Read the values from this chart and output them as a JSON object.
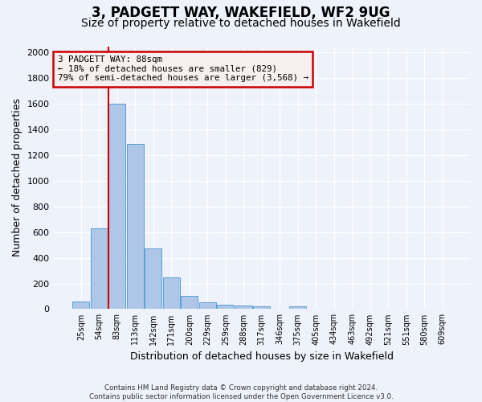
{
  "title1": "3, PADGETT WAY, WAKEFIELD, WF2 9UG",
  "title2": "Size of property relative to detached houses in Wakefield",
  "xlabel": "Distribution of detached houses by size in Wakefield",
  "ylabel": "Number of detached properties",
  "categories": [
    "25sqm",
    "54sqm",
    "83sqm",
    "113sqm",
    "142sqm",
    "171sqm",
    "200sqm",
    "229sqm",
    "259sqm",
    "288sqm",
    "317sqm",
    "346sqm",
    "375sqm",
    "405sqm",
    "434sqm",
    "463sqm",
    "492sqm",
    "521sqm",
    "551sqm",
    "580sqm",
    "609sqm"
  ],
  "values": [
    60,
    630,
    1600,
    1290,
    475,
    248,
    103,
    52,
    37,
    28,
    20,
    0,
    20,
    0,
    0,
    0,
    0,
    0,
    0,
    0,
    0
  ],
  "bar_color": "#aec6e8",
  "bar_edge_color": "#5a9fd4",
  "vline_x_index": 2,
  "vline_color": "#cc0000",
  "annotation_text": "3 PADGETT WAY: 88sqm\n← 18% of detached houses are smaller (829)\n79% of semi-detached houses are larger (3,568) →",
  "annotation_box_facecolor": "#f8f0f0",
  "annotation_box_edgecolor": "#cc0000",
  "ylim": [
    0,
    2050
  ],
  "yticks": [
    0,
    200,
    400,
    600,
    800,
    1000,
    1200,
    1400,
    1600,
    1800,
    2000
  ],
  "footnote1": "Contains HM Land Registry data © Crown copyright and database right 2024.",
  "footnote2": "Contains public sector information licensed under the Open Government Licence v3.0.",
  "bg_color": "#eef2fb",
  "grid_color": "#ffffff",
  "title1_fontsize": 12,
  "title2_fontsize": 10,
  "ylabel_fontsize": 9,
  "xlabel_fontsize": 9
}
